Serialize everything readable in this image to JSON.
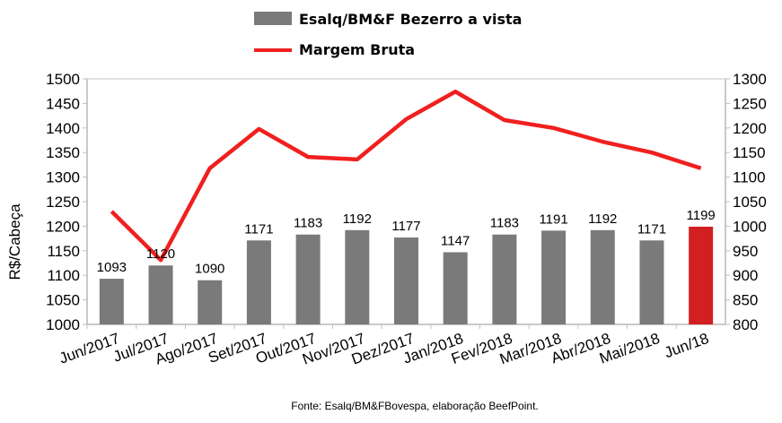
{
  "chart_data": {
    "type": "bar+line",
    "categories": [
      "Jun/2017",
      "Jul/2017",
      "Ago/2017",
      "Set/2017",
      "Out/2017",
      "Nov/2017",
      "Dez/2017",
      "Jan/2018",
      "Fev/2018",
      "Mar/2018",
      "Abr/2018",
      "Mai/2018",
      "Jun/18"
    ],
    "series": [
      {
        "name": "Esalq/BM&F Bezerro a vista",
        "type": "bar",
        "axis": "left",
        "values": [
          1093,
          1120,
          1090,
          1171,
          1183,
          1192,
          1177,
          1147,
          1183,
          1191,
          1192,
          1171,
          1199
        ],
        "color": "#7a7a7a",
        "highlight_color": "#d21f1f",
        "highlight_index": 12
      },
      {
        "name": "Margem Bruta",
        "type": "line",
        "axis": "right",
        "values": [
          1030,
          931,
          1118,
          1198,
          1141,
          1136,
          1218,
          1274,
          1216,
          1200,
          1172,
          1150,
          1118
        ],
        "color": "#f0201f"
      }
    ],
    "ylabel": "R$/Cabeça",
    "ylim": [
      1000,
      1500
    ],
    "yticks": [
      1000,
      1050,
      1100,
      1150,
      1200,
      1250,
      1300,
      1350,
      1400,
      1450,
      1500
    ],
    "y2lim": [
      800,
      1300
    ],
    "y2ticks": [
      800,
      850,
      900,
      950,
      1000,
      1050,
      1100,
      1150,
      1200,
      1250,
      1300
    ],
    "legend": "top-center",
    "grid": false,
    "source": "Fonte: Esalq/BM&FBovespa, elaboração BeefPoint."
  }
}
